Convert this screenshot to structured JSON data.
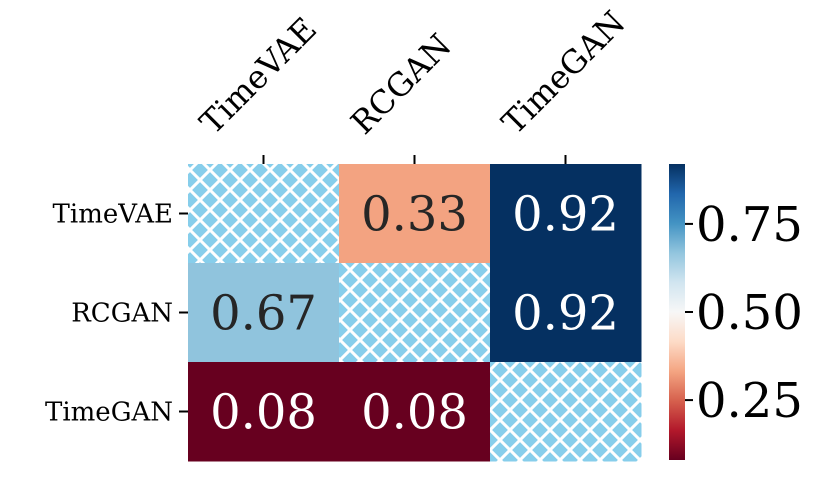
{
  "chart_data": {
    "type": "heatmap",
    "x_categories": [
      "TimeVAE",
      "RCGAN",
      "TimeGAN"
    ],
    "y_categories": [
      "TimeVAE",
      "RCGAN",
      "TimeGAN"
    ],
    "values": [
      [
        null,
        0.33,
        0.92
      ],
      [
        0.67,
        null,
        0.92
      ],
      [
        0.08,
        0.08,
        null
      ]
    ],
    "value_labels": [
      [
        "",
        "0.33",
        "0.92"
      ],
      [
        "0.67",
        "",
        "0.92"
      ],
      [
        "0.08",
        "0.08",
        ""
      ]
    ],
    "diagonal_style": "hatched",
    "colormap": "RdBu",
    "vmin": 0.08,
    "vmax": 0.92,
    "colorbar": {
      "ticks": [
        0.25,
        0.5,
        0.75
      ],
      "tick_labels": [
        "0.25",
        "0.50",
        "0.75"
      ]
    },
    "x_axis_position": "top",
    "title": "",
    "xlabel": "",
    "ylabel": ""
  },
  "colors": {
    "hatch_background": "#87ceeb",
    "hatch_line": "#ffffff",
    "cmap_stops": [
      "#67001f",
      "#b2182b",
      "#d6604d",
      "#f4a582",
      "#fddbc7",
      "#f7f7f7",
      "#d1e5f0",
      "#92c5de",
      "#4393c3",
      "#2166ac",
      "#053061"
    ]
  }
}
